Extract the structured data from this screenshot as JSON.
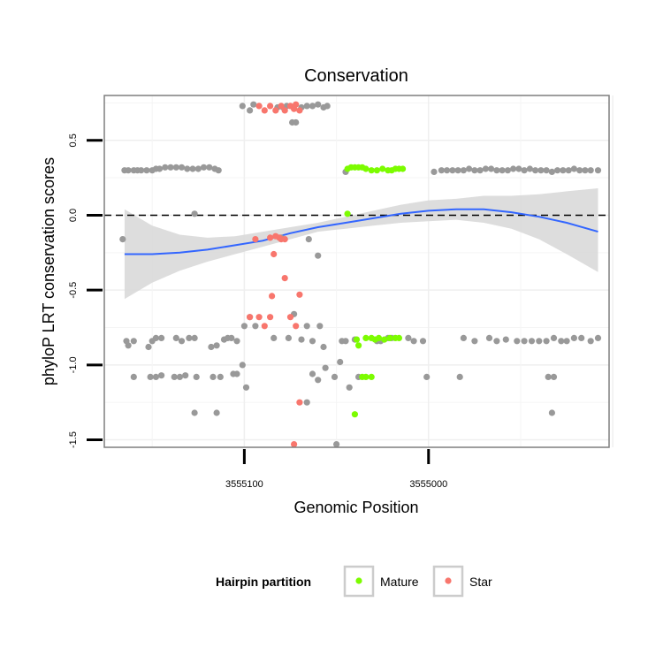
{
  "chart_data": {
    "type": "scatter",
    "title": "Conservation",
    "xlabel": "Genomic Position",
    "ylabel": "phyloP LRT conservation scores",
    "x_reversed": true,
    "xlim": [
      3555176,
      3554902
    ],
    "ylim": [
      -1.55,
      0.8
    ],
    "x_ticks": [
      3555100,
      3555000
    ],
    "x_tick_labels": [
      "3555100",
      "3555000"
    ],
    "y_ticks": [
      -1.5,
      -1.0,
      -0.5,
      0.0,
      0.5
    ],
    "y_tick_labels": [
      "-1.5",
      "-1.0",
      "-0.5",
      "0.0",
      "0.5"
    ],
    "reference_line": {
      "y": 0,
      "style": "dashed"
    },
    "grid": true,
    "legend": {
      "title": "Hairpin partition",
      "placement": "bottom",
      "entries": [
        {
          "label": "Mature",
          "color": "#7CFC00"
        },
        {
          "label": "Star",
          "color": "#F8766D"
        }
      ]
    },
    "colors": {
      "other": "#999999",
      "Mature": "#7CFC00",
      "Star": "#F8766D",
      "smooth": "#3366FF",
      "band": "#D9D9D9"
    },
    "series": [
      {
        "partition": "other",
        "points": [
          [
            3555165,
            0.3
          ],
          [
            3555163,
            0.3
          ],
          [
            3555160,
            0.3
          ],
          [
            3555158,
            0.3
          ],
          [
            3555156,
            0.3
          ],
          [
            3555153,
            0.3
          ],
          [
            3555150,
            0.3
          ],
          [
            3555148,
            0.31
          ],
          [
            3555146,
            0.31
          ],
          [
            3555143,
            0.32
          ],
          [
            3555140,
            0.32
          ],
          [
            3555137,
            0.32
          ],
          [
            3555134,
            0.32
          ],
          [
            3555131,
            0.31
          ],
          [
            3555128,
            0.31
          ],
          [
            3555125,
            0.31
          ],
          [
            3555122,
            0.32
          ],
          [
            3555119,
            0.32
          ],
          [
            3555116,
            0.31
          ],
          [
            3555114,
            0.3
          ],
          [
            3555101,
            0.73
          ],
          [
            3555097,
            0.7
          ],
          [
            3555095,
            0.74
          ],
          [
            3555082,
            0.72
          ],
          [
            3555079,
            0.72
          ],
          [
            3555077,
            0.73
          ],
          [
            3555074,
            0.62
          ],
          [
            3555072,
            0.62
          ],
          [
            3555069,
            0.72
          ],
          [
            3555066,
            0.73
          ],
          [
            3555063,
            0.73
          ],
          [
            3555060,
            0.74
          ],
          [
            3555057,
            0.72
          ],
          [
            3555055,
            0.73
          ],
          [
            3555045,
            0.29
          ],
          [
            3554997,
            0.29
          ],
          [
            3554993,
            0.3
          ],
          [
            3554990,
            0.3
          ],
          [
            3554987,
            0.3
          ],
          [
            3554984,
            0.3
          ],
          [
            3554981,
            0.3
          ],
          [
            3554978,
            0.31
          ],
          [
            3554975,
            0.3
          ],
          [
            3554972,
            0.3
          ],
          [
            3554969,
            0.31
          ],
          [
            3554966,
            0.31
          ],
          [
            3554963,
            0.3
          ],
          [
            3554960,
            0.3
          ],
          [
            3554957,
            0.3
          ],
          [
            3554954,
            0.31
          ],
          [
            3554951,
            0.31
          ],
          [
            3554948,
            0.3
          ],
          [
            3554945,
            0.31
          ],
          [
            3554942,
            0.3
          ],
          [
            3554939,
            0.3
          ],
          [
            3554936,
            0.3
          ],
          [
            3554933,
            0.29
          ],
          [
            3554930,
            0.3
          ],
          [
            3554927,
            0.3
          ],
          [
            3554924,
            0.3
          ],
          [
            3554921,
            0.31
          ],
          [
            3554918,
            0.3
          ],
          [
            3554915,
            0.3
          ],
          [
            3554912,
            0.3
          ],
          [
            3554908,
            0.3
          ],
          [
            3555166,
            -0.16
          ],
          [
            3555127,
            0.01
          ],
          [
            3555080,
            -0.15
          ],
          [
            3555065,
            -0.16
          ],
          [
            3555060,
            -0.27
          ],
          [
            3555164,
            -0.84
          ],
          [
            3555163,
            -0.87
          ],
          [
            3555160,
            -0.84
          ],
          [
            3555152,
            -0.88
          ],
          [
            3555150,
            -0.84
          ],
          [
            3555148,
            -0.82
          ],
          [
            3555145,
            -0.82
          ],
          [
            3555137,
            -0.82
          ],
          [
            3555134,
            -0.84
          ],
          [
            3555130,
            -0.82
          ],
          [
            3555127,
            -0.82
          ],
          [
            3555118,
            -0.88
          ],
          [
            3555115,
            -0.87
          ],
          [
            3555111,
            -0.83
          ],
          [
            3555109,
            -0.82
          ],
          [
            3555107,
            -0.82
          ],
          [
            3555104,
            -0.84
          ],
          [
            3555100,
            -0.74
          ],
          [
            3555097,
            -0.68
          ],
          [
            3555094,
            -0.74
          ],
          [
            3555084,
            -0.82
          ],
          [
            3555076,
            -0.82
          ],
          [
            3555073,
            -0.66
          ],
          [
            3555069,
            -0.83
          ],
          [
            3555066,
            -0.74
          ],
          [
            3555063,
            -0.84
          ],
          [
            3555059,
            -0.74
          ],
          [
            3555057,
            -0.88
          ],
          [
            3555047,
            -0.84
          ],
          [
            3555045,
            -0.84
          ],
          [
            3555040,
            -0.83
          ],
          [
            3555028,
            -0.84
          ],
          [
            3555026,
            -0.84
          ],
          [
            3555022,
            -0.82
          ],
          [
            3555020,
            -0.82
          ],
          [
            3555011,
            -0.82
          ],
          [
            3555008,
            -0.84
          ],
          [
            3555003,
            -0.84
          ],
          [
            3554981,
            -0.82
          ],
          [
            3554975,
            -0.84
          ],
          [
            3554967,
            -0.82
          ],
          [
            3554963,
            -0.84
          ],
          [
            3554958,
            -0.83
          ],
          [
            3554952,
            -0.84
          ],
          [
            3554948,
            -0.84
          ],
          [
            3554944,
            -0.84
          ],
          [
            3554940,
            -0.84
          ],
          [
            3554936,
            -0.84
          ],
          [
            3554932,
            -0.82
          ],
          [
            3554928,
            -0.84
          ],
          [
            3554925,
            -0.84
          ],
          [
            3554921,
            -0.82
          ],
          [
            3554917,
            -0.82
          ],
          [
            3554912,
            -0.84
          ],
          [
            3554908,
            -0.82
          ],
          [
            3555160,
            -1.08
          ],
          [
            3555151,
            -1.08
          ],
          [
            3555148,
            -1.08
          ],
          [
            3555145,
            -1.07
          ],
          [
            3555138,
            -1.08
          ],
          [
            3555135,
            -1.08
          ],
          [
            3555132,
            -1.07
          ],
          [
            3555126,
            -1.08
          ],
          [
            3555117,
            -1.08
          ],
          [
            3555113,
            -1.08
          ],
          [
            3555106,
            -1.06
          ],
          [
            3555104,
            -1.06
          ],
          [
            3555101,
            -1.0
          ],
          [
            3555099,
            -1.15
          ],
          [
            3555063,
            -1.06
          ],
          [
            3555060,
            -1.1
          ],
          [
            3555056,
            -1.02
          ],
          [
            3555051,
            -1.08
          ],
          [
            3555048,
            -0.98
          ],
          [
            3555043,
            -1.15
          ],
          [
            3555038,
            -1.08
          ],
          [
            3555001,
            -1.08
          ],
          [
            3554983,
            -1.08
          ],
          [
            3554935,
            -1.08
          ],
          [
            3554932,
            -1.08
          ],
          [
            3555127,
            -1.32
          ],
          [
            3555115,
            -1.32
          ],
          [
            3555066,
            -1.25
          ],
          [
            3555050,
            -1.53
          ],
          [
            3554933,
            -1.32
          ]
        ]
      },
      {
        "partition": "Mature",
        "points": [
          [
            3555044,
            0.31
          ],
          [
            3555042,
            0.32
          ],
          [
            3555040,
            0.32
          ],
          [
            3555038,
            0.32
          ],
          [
            3555036,
            0.32
          ],
          [
            3555034,
            0.31
          ],
          [
            3555031,
            0.3
          ],
          [
            3555028,
            0.3
          ],
          [
            3555025,
            0.31
          ],
          [
            3555022,
            0.3
          ],
          [
            3555020,
            0.3
          ],
          [
            3555018,
            0.31
          ],
          [
            3555016,
            0.31
          ],
          [
            3555014,
            0.31
          ],
          [
            3555044,
            0.01
          ],
          [
            3555039,
            -0.83
          ],
          [
            3555038,
            -0.87
          ],
          [
            3555034,
            -0.82
          ],
          [
            3555031,
            -0.82
          ],
          [
            3555029,
            -0.83
          ],
          [
            3555027,
            -0.82
          ],
          [
            3555024,
            -0.83
          ],
          [
            3555021,
            -0.82
          ],
          [
            3555018,
            -0.82
          ],
          [
            3555016,
            -0.82
          ],
          [
            3555036,
            -1.08
          ],
          [
            3555034,
            -1.08
          ],
          [
            3555031,
            -1.08
          ],
          [
            3555040,
            -1.33
          ]
        ]
      },
      {
        "partition": "Star",
        "points": [
          [
            3555092,
            0.73
          ],
          [
            3555089,
            0.7
          ],
          [
            3555086,
            0.73
          ],
          [
            3555083,
            0.7
          ],
          [
            3555080,
            0.73
          ],
          [
            3555078,
            0.7
          ],
          [
            3555075,
            0.73
          ],
          [
            3555073,
            0.71
          ],
          [
            3555072,
            0.74
          ],
          [
            3555070,
            0.7
          ],
          [
            3555094,
            -0.16
          ],
          [
            3555086,
            -0.15
          ],
          [
            3555083,
            -0.14
          ],
          [
            3555081,
            -0.15
          ],
          [
            3555080,
            -0.16
          ],
          [
            3555078,
            -0.16
          ],
          [
            3555084,
            -0.26
          ],
          [
            3555078,
            -0.42
          ],
          [
            3555085,
            -0.54
          ],
          [
            3555070,
            -0.53
          ],
          [
            3555097,
            -0.68
          ],
          [
            3555092,
            -0.68
          ],
          [
            3555089,
            -0.74
          ],
          [
            3555086,
            -0.68
          ],
          [
            3555075,
            -0.68
          ],
          [
            3555072,
            -0.74
          ],
          [
            3555070,
            -1.25
          ],
          [
            3555073,
            -1.53
          ]
        ]
      }
    ],
    "smooth_curve": {
      "x": [
        3555165,
        3555150,
        3555135,
        3555120,
        3555105,
        3555090,
        3555075,
        3555060,
        3555045,
        3555030,
        3555015,
        3555000,
        3554985,
        3554970,
        3554955,
        3554940,
        3554925,
        3554908
      ],
      "y": [
        -0.26,
        -0.26,
        -0.25,
        -0.23,
        -0.2,
        -0.17,
        -0.12,
        -0.08,
        -0.05,
        -0.02,
        0.01,
        0.03,
        0.04,
        0.04,
        0.02,
        -0.01,
        -0.05,
        -0.11
      ],
      "lower": [
        -0.56,
        -0.45,
        -0.37,
        -0.31,
        -0.26,
        -0.21,
        -0.16,
        -0.11,
        -0.09,
        -0.07,
        -0.05,
        -0.04,
        -0.03,
        -0.05,
        -0.09,
        -0.16,
        -0.26,
        -0.38
      ],
      "upper": [
        0.04,
        -0.07,
        -0.13,
        -0.15,
        -0.14,
        -0.11,
        -0.08,
        -0.05,
        -0.01,
        0.03,
        0.07,
        0.1,
        0.11,
        0.13,
        0.13,
        0.14,
        0.16,
        0.18
      ]
    }
  }
}
